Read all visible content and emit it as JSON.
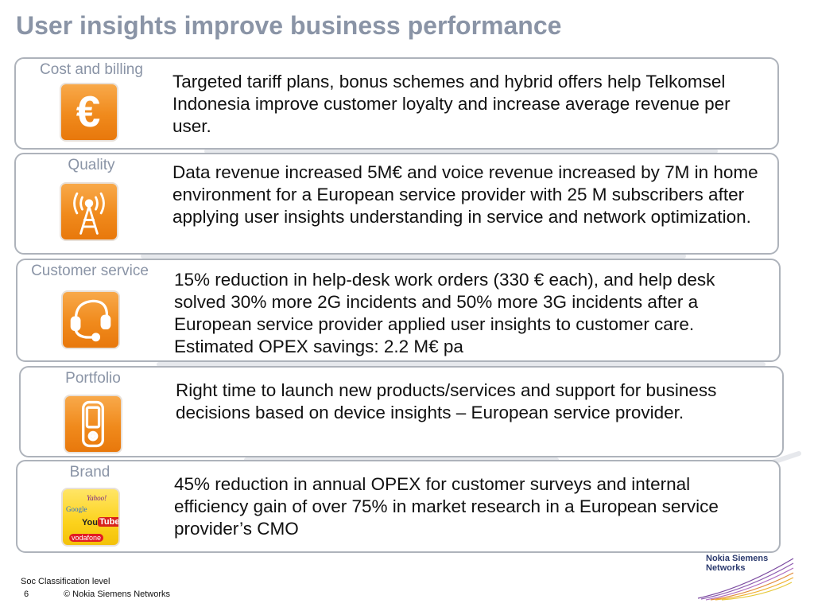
{
  "title": "User insights improve business performance",
  "cards": [
    {
      "label": "Cost and billing",
      "icon": "euro-icon",
      "text": "Targeted tariff plans, bonus schemes and hybrid offers help Telkomsel Indonesia improve customer loyalty and increase average revenue per user."
    },
    {
      "label": "Quality",
      "icon": "antenna-icon",
      "text": "Data revenue increased 5M€ and voice revenue increased by 7M in home environment for a European service provider with 25 M subscribers after applying user insights understanding in service and network optimization."
    },
    {
      "label": "Customer service",
      "icon": "headset-icon",
      "text": "15% reduction in help-desk work orders (330 € each), and help desk solved 30% more 2G incidents and 50% more 3G incidents after a European service provider applied user insights to customer care.  Estimated OPEX savings: 2.2 M€ pa"
    },
    {
      "label": "Portfolio",
      "icon": "mobile-phone-icon",
      "text": "Right time to launch new products/services and support for business decisions based on device insights – European service provider."
    },
    {
      "label": "Brand",
      "icon": "brand-logos-icon",
      "text": "45% reduction in annual OPEX for customer surveys and internal efficiency gain of over 75% in market research in a European service provider’s CMO"
    }
  ],
  "brand_icon_words": [
    "Yahoo!",
    "Google",
    "You",
    "Tube",
    "vodafone"
  ],
  "footer": {
    "classification": "Soc Classification level",
    "page_number": "6",
    "copyright": "© Nokia Siemens Networks"
  },
  "logo": {
    "line1": "Nokia Siemens",
    "line2": "Networks"
  },
  "colors": {
    "title": "#8a94a6",
    "icon_orange": "#f08a1c",
    "icon_yellow": "#fcd21c",
    "card_border": "#aeb3bb"
  }
}
